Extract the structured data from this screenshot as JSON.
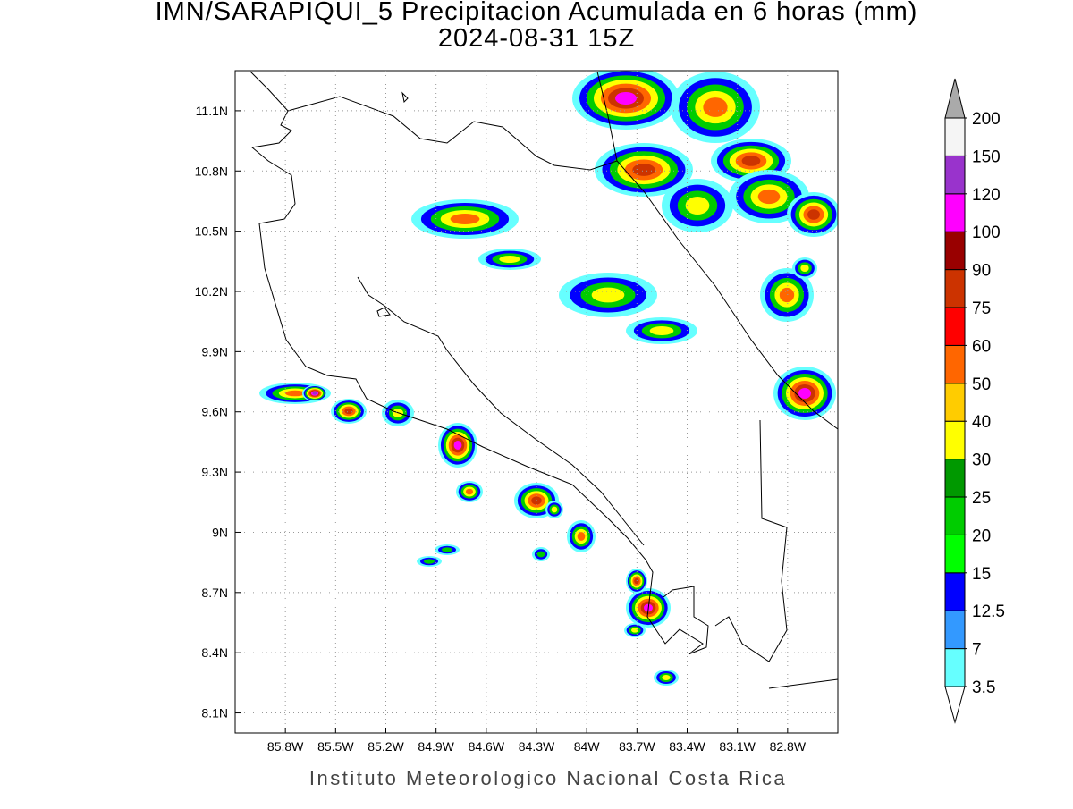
{
  "chart_data": {
    "type": "contour-map",
    "title": "IMN/SARAPIQUI_5 Precipitacion Acumulada en 6 horas (mm)",
    "subtitle": "2024-08-31 15Z",
    "footer": "Instituto Meteorologico Nacional Costa Rica",
    "xlim": [
      86.1,
      82.5
    ],
    "ylim": [
      8.0,
      11.3
    ],
    "xticks": [
      {
        "value": 85.8,
        "label": "85.8W"
      },
      {
        "value": 85.5,
        "label": "85.5W"
      },
      {
        "value": 85.2,
        "label": "85.2W"
      },
      {
        "value": 84.9,
        "label": "84.9W"
      },
      {
        "value": 84.6,
        "label": "84.6W"
      },
      {
        "value": 84.3,
        "label": "84.3W"
      },
      {
        "value": 84,
        "label": "84W"
      },
      {
        "value": 83.7,
        "label": "83.7W"
      },
      {
        "value": 83.4,
        "label": "83.4W"
      },
      {
        "value": 83.1,
        "label": "83.1W"
      },
      {
        "value": 82.8,
        "label": "82.8W"
      }
    ],
    "yticks": [
      {
        "value": 8.1,
        "label": "8.1N"
      },
      {
        "value": 8.4,
        "label": "8.4N"
      },
      {
        "value": 8.7,
        "label": "8.7N"
      },
      {
        "value": 9,
        "label": "9N"
      },
      {
        "value": 9.3,
        "label": "9.3N"
      },
      {
        "value": 9.6,
        "label": "9.6N"
      },
      {
        "value": 9.9,
        "label": "9.9N"
      },
      {
        "value": 10.2,
        "label": "10.2N"
      },
      {
        "value": 10.5,
        "label": "10.5N"
      },
      {
        "value": 10.8,
        "label": "10.8N"
      },
      {
        "value": 11.1,
        "label": "11.1N"
      }
    ],
    "grid": true,
    "colorbar": {
      "levels": [
        3.5,
        7,
        12.5,
        15,
        20,
        25,
        30,
        40,
        50,
        60,
        75,
        90,
        100,
        120,
        150,
        200
      ],
      "colors": [
        "#66ffff",
        "#3399ff",
        "#0000ff",
        "#00ff00",
        "#00cc00",
        "#009900",
        "#ffff00",
        "#ffcc00",
        "#ff6600",
        "#ff0000",
        "#cc3300",
        "#990000",
        "#ff00ff",
        "#9933cc",
        "#f5f5f5"
      ],
      "over_color": "#aaaaaa",
      "under_color": "#ffffff"
    }
  }
}
